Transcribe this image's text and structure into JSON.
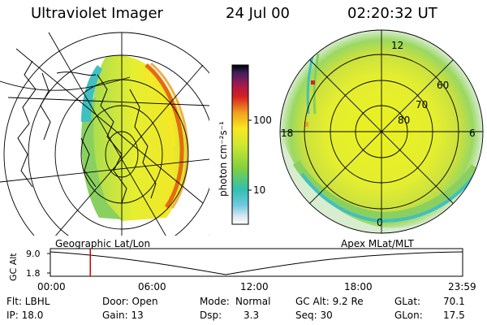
{
  "header": {
    "title": "Ultraviolet Imager",
    "date": "24 Jul 00",
    "time": "02:20:32 UT"
  },
  "colorbar": {
    "unit_label": "photon cm⁻²s⁻¹",
    "ticks": [
      "100",
      "10"
    ]
  },
  "polar_plot": {
    "label": "Apex MLat/MLT",
    "mlt_labels": [
      "12",
      "18",
      "6",
      "0"
    ],
    "mlat_labels": [
      "60",
      "70",
      "80"
    ]
  },
  "geo_plot": {
    "label": "Geographic Lat/Lon"
  },
  "altitude_plot": {
    "ylabel": "GC Alt",
    "y_ticks": [
      "9.0",
      "1.8"
    ],
    "x_ticks": [
      "00:00",
      "06:00",
      "12:00",
      "18:00",
      "23:59"
    ],
    "current_time_fraction": 0.097
  },
  "status": {
    "row1": {
      "flt": "Flt: LBHL",
      "door": "Door: Open",
      "mode_label": "Mode:",
      "mode_value": "Normal",
      "gcalt": "GC Alt: 9.2 Re",
      "glat_label": "GLat:",
      "glat_value": "70.1"
    },
    "row2": {
      "ip": "IP: 18.0",
      "gain": "Gain: 13",
      "dsp_label": "Dsp:",
      "dsp_value": "3.3",
      "seq": "Seq: 30",
      "glon_label": "GLon:",
      "glon_value": "17.5"
    }
  },
  "colors": {
    "cursor": "#cc0000",
    "aurora_hot": "#e86a10",
    "aurora_mid": "#f0e020",
    "aurora_low": "#88d040"
  }
}
